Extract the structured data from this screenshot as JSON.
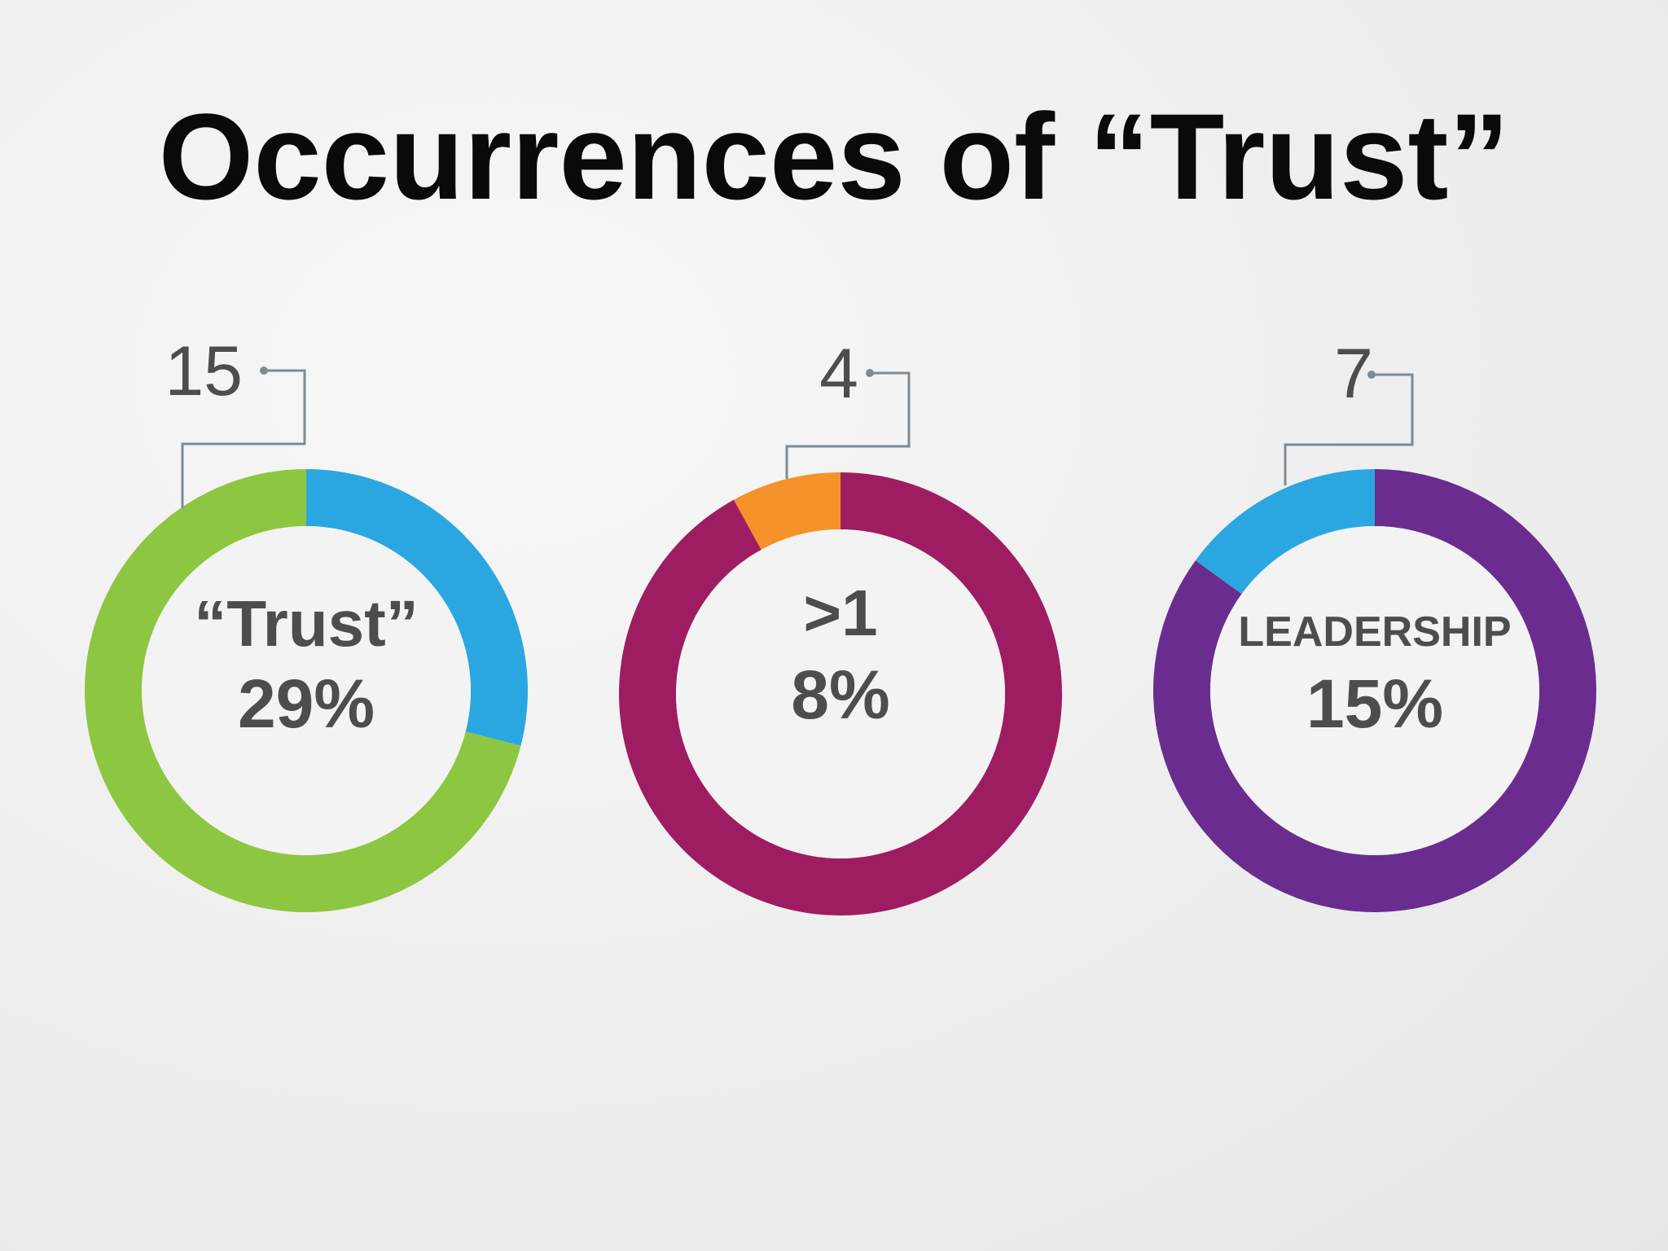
{
  "slide": {
    "title": "Occurrences of “Trust”",
    "background": "#efefef"
  },
  "chart_data": [
    {
      "type": "pie",
      "donut": true,
      "center_label": "“Trust”",
      "center_value": "29%",
      "callout_value": "15",
      "slices": [
        {
          "value": 29,
          "color": "#2aa7e0",
          "highlight": false
        },
        {
          "value": 71,
          "color": "#8dc641",
          "highlight": true
        }
      ]
    },
    {
      "type": "pie",
      "donut": true,
      "center_label": ">1",
      "center_value": "8%",
      "callout_value": "4",
      "slices": [
        {
          "value": 92,
          "color": "#9e1d62",
          "highlight": false
        },
        {
          "value": 8,
          "color": "#f5922a",
          "highlight": true
        }
      ]
    },
    {
      "type": "pie",
      "donut": true,
      "center_label": "LEADERSHIP",
      "center_value": "15%",
      "callout_value": "7",
      "slices": [
        {
          "value": 85,
          "color": "#6a2d8f",
          "highlight": false
        },
        {
          "value": 15,
          "color": "#2aa7e0",
          "highlight": true
        }
      ]
    }
  ]
}
